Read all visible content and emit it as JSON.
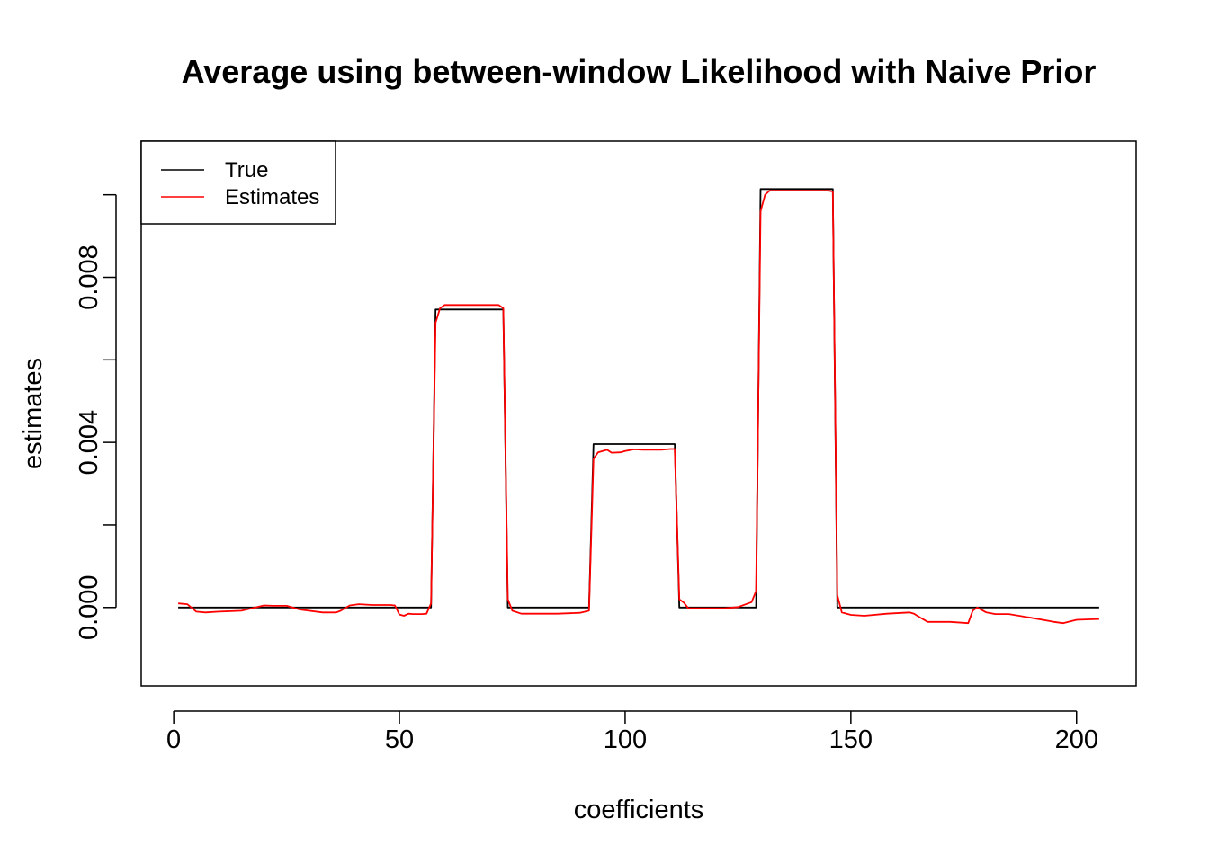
{
  "chart_data": {
    "type": "line",
    "title": "Average using between-window Likelihood with Naive Prior",
    "xlabel": "coefficients",
    "ylabel": "estimates",
    "xlim": [
      -7.2,
      213.2
    ],
    "ylim": [
      -0.0019,
      0.0113
    ],
    "xticks": [
      0,
      50,
      100,
      150,
      200
    ],
    "xtick_labels": [
      "0",
      "50",
      "100",
      "150",
      "200"
    ],
    "yticks": [
      0.0,
      0.002,
      0.004,
      0.006,
      0.008,
      0.01
    ],
    "ytick_labels": [
      "0.000",
      "",
      "0.004",
      "",
      "0.008",
      ""
    ],
    "grid": false,
    "legend": {
      "position": "top-left",
      "entries": [
        {
          "label": "True",
          "color": "#000000"
        },
        {
          "label": "Estimates",
          "color": "#ff0000"
        }
      ]
    },
    "series": [
      {
        "name": "True",
        "color": "#000000",
        "x": [
          1,
          57,
          58,
          73,
          74,
          92,
          93,
          111,
          112,
          129,
          130,
          146,
          147,
          205
        ],
        "y": [
          0.0,
          0.0,
          0.00722,
          0.00722,
          0.0,
          0.0,
          0.00396,
          0.00396,
          0.0,
          0.0,
          0.01014,
          0.01014,
          0.0,
          0.0
        ]
      },
      {
        "name": "Estimates",
        "color": "#ff0000",
        "x": [
          1,
          3,
          5,
          7,
          10,
          15,
          20,
          22,
          25,
          28,
          33,
          36,
          37,
          39,
          41,
          44,
          48,
          49,
          50,
          51,
          52,
          53,
          55,
          56,
          57,
          58,
          59,
          60,
          62,
          64,
          66,
          68,
          70,
          72,
          73,
          74,
          75,
          77,
          80,
          85,
          90,
          92,
          93,
          94,
          96,
          97,
          99,
          100,
          102,
          104,
          106,
          108,
          110,
          111,
          112,
          113,
          114,
          115,
          118,
          122,
          125,
          128,
          129,
          130,
          131,
          132,
          134,
          136,
          140,
          144,
          145,
          146,
          147,
          148,
          150,
          153,
          158,
          163,
          164,
          165,
          167,
          172,
          176,
          177,
          178,
          180,
          182,
          185,
          190,
          195,
          197,
          200,
          205
        ],
        "y": [
          0.0001,
          8e-05,
          -0.0001,
          -0.00012,
          -0.0001,
          -8e-05,
          5e-05,
          4e-05,
          4e-05,
          -5e-05,
          -0.00012,
          -0.00012,
          -8e-05,
          5e-05,
          8e-05,
          6e-05,
          6e-05,
          5e-05,
          -0.00017,
          -0.0002,
          -0.00015,
          -0.00016,
          -0.00016,
          -0.00015,
          0.0001,
          0.0069,
          0.00725,
          0.00733,
          0.00733,
          0.00733,
          0.00733,
          0.00733,
          0.00733,
          0.00733,
          0.00725,
          0.0002,
          -8e-05,
          -0.00015,
          -0.00015,
          -0.00015,
          -0.00013,
          -8e-05,
          0.0036,
          0.00376,
          0.00382,
          0.00375,
          0.00376,
          0.00379,
          0.00383,
          0.00382,
          0.00382,
          0.00382,
          0.00384,
          0.00384,
          0.0002,
          0.00012,
          -2e-05,
          -2e-05,
          -2e-05,
          -2e-05,
          1e-05,
          0.00013,
          0.0004,
          0.0096,
          0.01,
          0.0101,
          0.0101,
          0.0101,
          0.0101,
          0.0101,
          0.0101,
          0.01008,
          0.0003,
          -0.00012,
          -0.00018,
          -0.0002,
          -0.00015,
          -0.00012,
          -0.00015,
          -0.00022,
          -0.00035,
          -0.00035,
          -0.00038,
          -8e-05,
          0.0,
          -0.00012,
          -0.00016,
          -0.00016,
          -0.00025,
          -0.00035,
          -0.00038,
          -0.0003,
          -0.00028
        ]
      }
    ]
  }
}
